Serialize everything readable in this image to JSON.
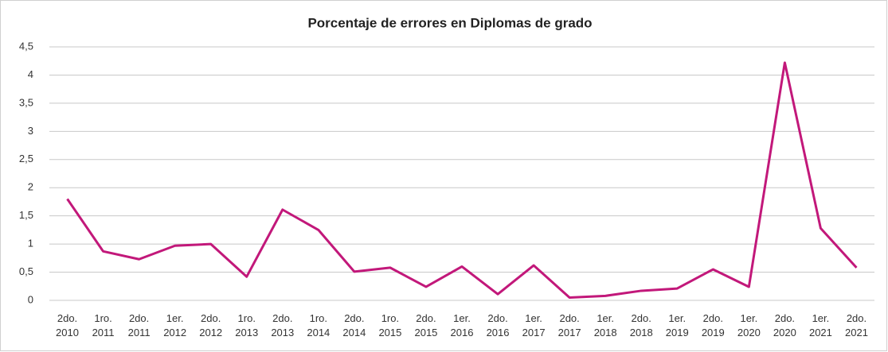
{
  "chart_data": {
    "type": "line",
    "title": "Porcentaje de errores en Diplomas de grado",
    "categories": [
      "2do. 2010",
      "1ro. 2011",
      "2do. 2011",
      "1er. 2012",
      "2do. 2012",
      "1ro. 2013",
      "2do. 2013",
      "1ro. 2014",
      "2do. 2014",
      "1ro. 2015",
      "2do. 2015",
      "1er. 2016",
      "2do. 2016",
      "1er. 2017",
      "2do. 2017",
      "1er. 2018",
      "2do. 2018",
      "1er. 2019",
      "2do. 2019",
      "1er. 2020",
      "2do. 2020",
      "1er. 2021",
      "2do. 2021"
    ],
    "series": [
      {
        "color": "#c2187a",
        "values": [
          1.8,
          0.87,
          0.73,
          0.97,
          1.0,
          0.42,
          1.61,
          1.25,
          0.51,
          0.58,
          0.24,
          0.6,
          0.11,
          0.62,
          0.05,
          0.08,
          0.17,
          0.21,
          0.55,
          0.24,
          4.22,
          1.28,
          0.58
        ]
      }
    ],
    "ylim": [
      0,
      4.5
    ],
    "yticks": [
      0,
      {
        "value": 0.5,
        "label": "0,5"
      },
      1,
      {
        "value": 1.5,
        "label": "1,5"
      },
      2,
      {
        "value": 2.5,
        "label": "2,5"
      },
      3,
      {
        "value": 3.5,
        "label": "3,5"
      },
      4,
      {
        "value": 4.5,
        "label": "4,5"
      }
    ],
    "grid": true
  }
}
